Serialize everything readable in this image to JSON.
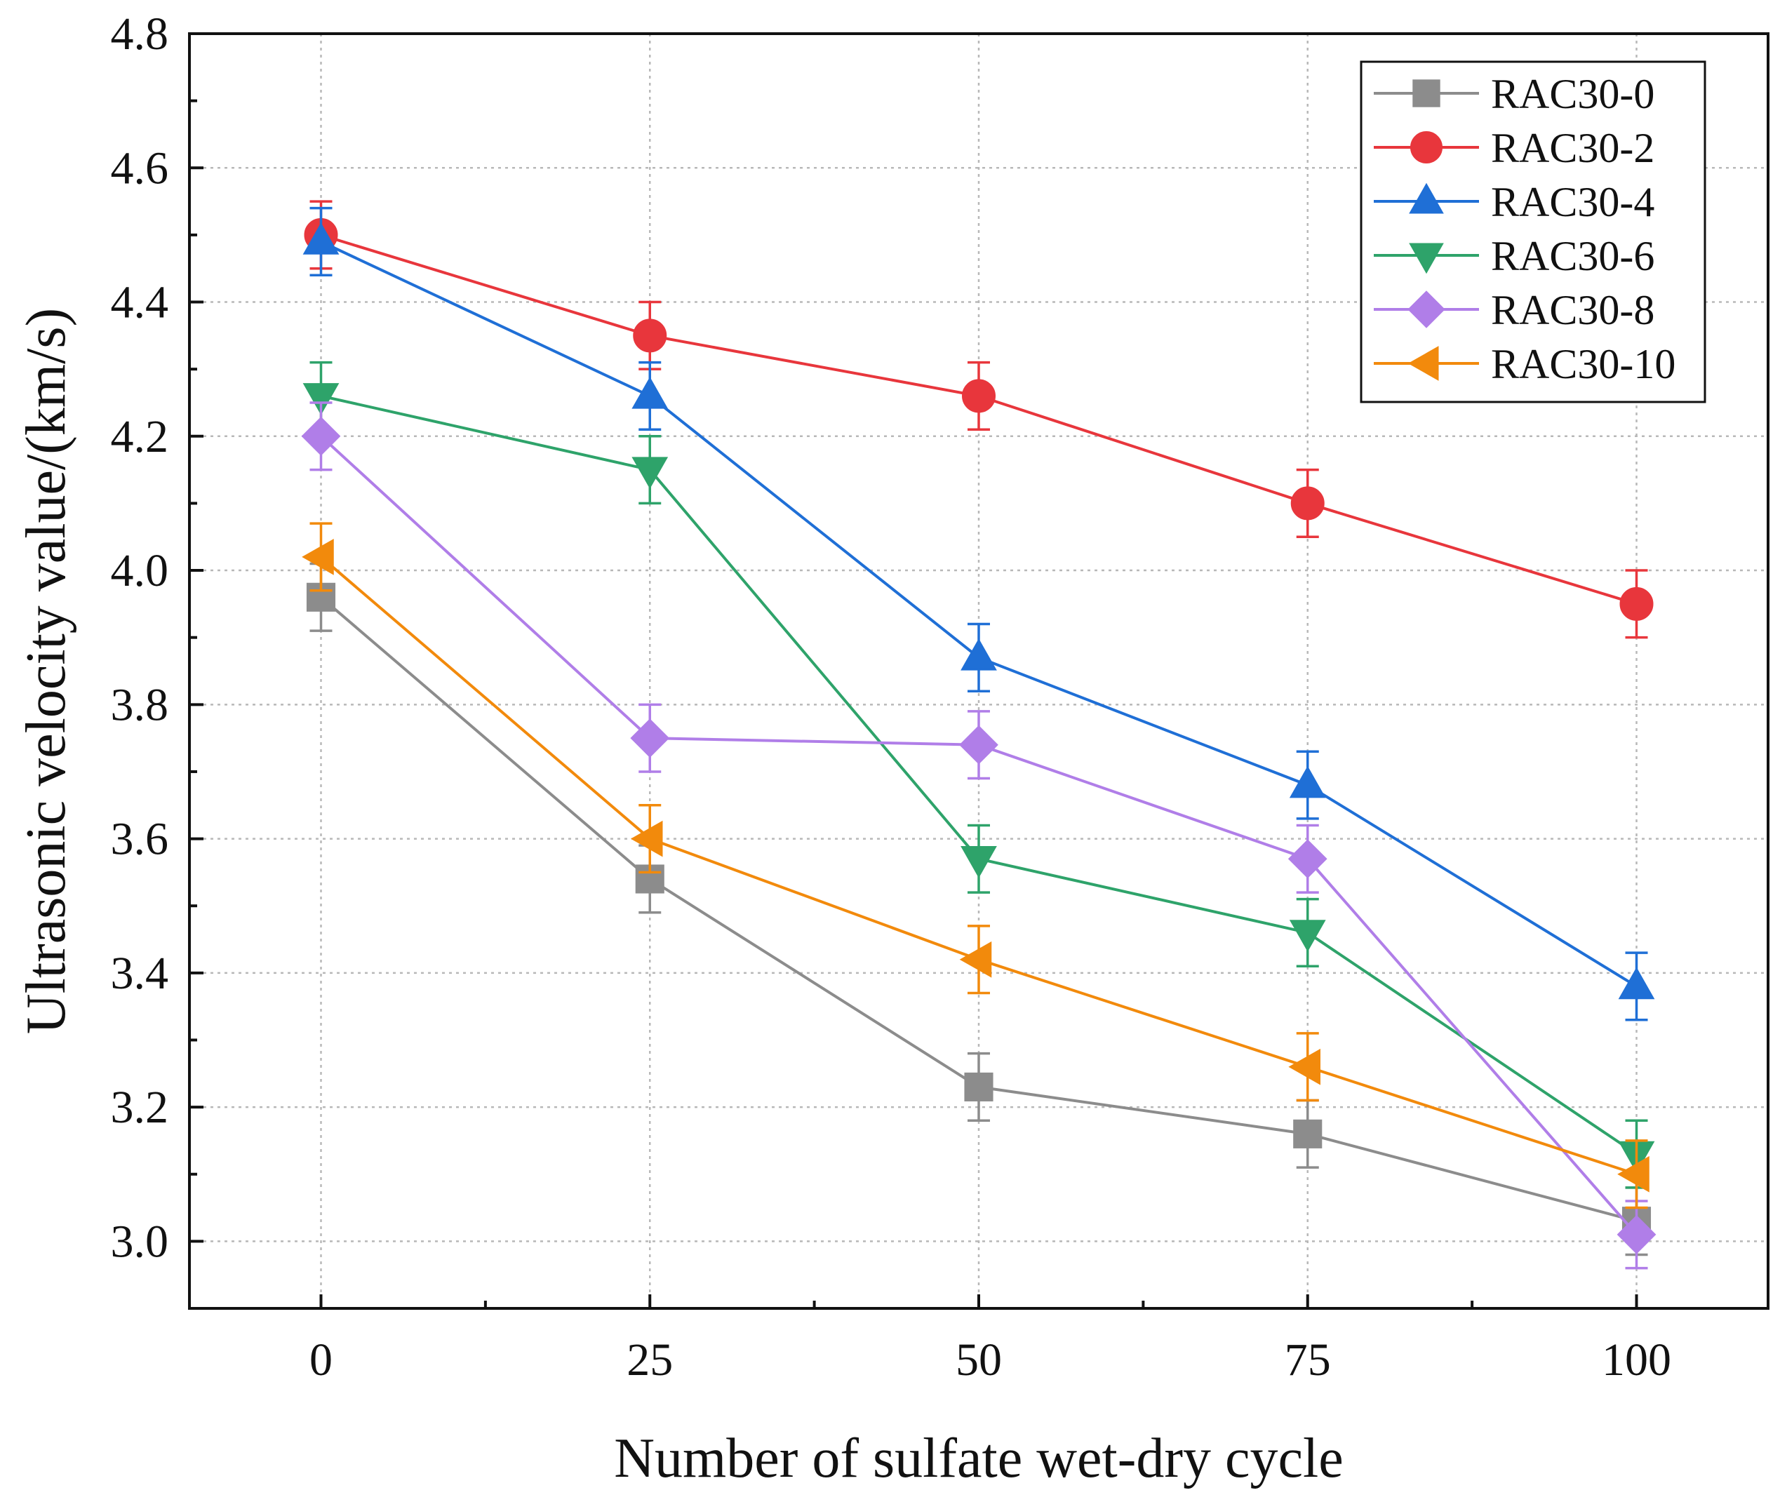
{
  "chart_data": {
    "type": "line",
    "title": "",
    "xlabel": "Number of sulfate wet-dry cycle",
    "ylabel": "Ultrasonic velocity value/(km/s)",
    "x": [
      0,
      25,
      50,
      75,
      100
    ],
    "xlim": [
      -10,
      110
    ],
    "ylim": [
      2.9,
      4.8
    ],
    "xticks": [
      "0",
      "25",
      "50",
      "75",
      "100"
    ],
    "yticks": [
      "3.0",
      "3.2",
      "3.4",
      "3.6",
      "3.8",
      "4.0",
      "4.2",
      "4.4",
      "4.6",
      "4.8"
    ],
    "grid": true,
    "legend_position": "top-right",
    "error_bar": 0.05,
    "series": [
      {
        "name": "RAC30-0",
        "color": "#8c8c8c",
        "marker": "square",
        "values": [
          3.96,
          3.54,
          3.23,
          3.16,
          3.03
        ]
      },
      {
        "name": "RAC30-2",
        "color": "#e8363c",
        "marker": "circle",
        "values": [
          4.5,
          4.35,
          4.26,
          4.1,
          3.95
        ]
      },
      {
        "name": "RAC30-4",
        "color": "#1f6fd6",
        "marker": "triangle-up",
        "values": [
          4.49,
          4.26,
          3.87,
          3.68,
          3.38
        ]
      },
      {
        "name": "RAC30-6",
        "color": "#2ea36a",
        "marker": "triangle-down",
        "values": [
          4.26,
          4.15,
          3.57,
          3.46,
          3.13
        ]
      },
      {
        "name": "RAC30-8",
        "color": "#b07ee8",
        "marker": "diamond",
        "values": [
          4.2,
          3.75,
          3.74,
          3.57,
          3.01
        ]
      },
      {
        "name": "RAC30-10",
        "color": "#f28a0c",
        "marker": "triangle-left",
        "values": [
          4.02,
          3.6,
          3.42,
          3.26,
          3.1
        ]
      }
    ]
  }
}
